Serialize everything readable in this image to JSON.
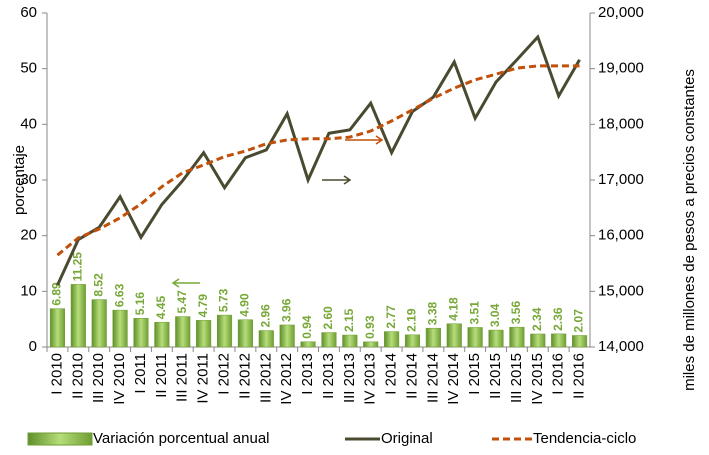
{
  "chart_data": {
    "type": "combo",
    "y_label": "porcentaje",
    "y2_label": "miles de millones de pesos a precios constantes",
    "categories": [
      "I 2010",
      "II 2010",
      "III 2010",
      "IV 2010",
      "I 2011",
      "II 2011",
      "III 2011",
      "IV 2011",
      "I 2012",
      "II 2012",
      "III 2012",
      "IV 2012",
      "I 2013",
      "II 2013",
      "III 2013",
      "IV 2013",
      "I 2014",
      "II 2014",
      "III 2014",
      "IV 2014",
      "I 2015",
      "II 2015",
      "III 2015",
      "IV 2015",
      "I 2016",
      "II 2016"
    ],
    "ylim": [
      0,
      60
    ],
    "yticks": [
      0,
      10,
      20,
      30,
      40,
      50,
      60
    ],
    "y2lim": [
      14000,
      20000
    ],
    "y2ticks": [
      {
        "value": 14000,
        "label": "14,000"
      },
      {
        "value": 15000,
        "label": "15,000"
      },
      {
        "value": 16000,
        "label": "16,000"
      },
      {
        "value": 17000,
        "label": "17,000"
      },
      {
        "value": 18000,
        "label": "18,000"
      },
      {
        "value": 19000,
        "label": "19,000"
      },
      {
        "value": 20000,
        "label": "20,000"
      }
    ],
    "series": [
      {
        "name": "Variación porcentual anual",
        "type": "bar",
        "color": "#8cc04a",
        "values": [
          6.89,
          11.25,
          8.52,
          6.63,
          5.16,
          4.45,
          5.47,
          4.79,
          5.73,
          4.9,
          2.96,
          3.96,
          0.94,
          2.6,
          2.15,
          0.93,
          2.77,
          2.19,
          3.38,
          4.18,
          3.51,
          3.04,
          3.56,
          2.34,
          2.36,
          2.07
        ],
        "value_labels": [
          "6.89",
          "11.25",
          "8.52",
          "6.63",
          "5.16",
          "4.45",
          "5.47",
          "4.79",
          "5.73",
          "4.90",
          "2.96",
          "3.96",
          "0.94",
          "2.60",
          "2.15",
          "0.93",
          "2.77",
          "2.19",
          "3.38",
          "4.18",
          "3.51",
          "3.04",
          "3.56",
          "2.34",
          "2.36",
          "2.07"
        ]
      },
      {
        "name": "Original",
        "type": "line",
        "axis": "y2",
        "color": "#4a4a30",
        "values": [
          15110,
          15930,
          16150,
          16700,
          15970,
          16560,
          16990,
          17490,
          16860,
          17400,
          17540,
          18190,
          17000,
          17840,
          17900,
          18380,
          17490,
          18230,
          18490,
          19120,
          18110,
          18760,
          19160,
          19570,
          18510,
          19160
        ]
      },
      {
        "name": "Tendencia-ciclo",
        "type": "dashed",
        "axis": "y2",
        "color": "#c0500a",
        "values": [
          15650,
          15960,
          16120,
          16320,
          16570,
          16880,
          17130,
          17270,
          17420,
          17520,
          17650,
          17720,
          17740,
          17740,
          17770,
          17880,
          18060,
          18260,
          18470,
          18650,
          18800,
          18900,
          19010,
          19050,
          19050,
          19050
        ]
      }
    ]
  }
}
